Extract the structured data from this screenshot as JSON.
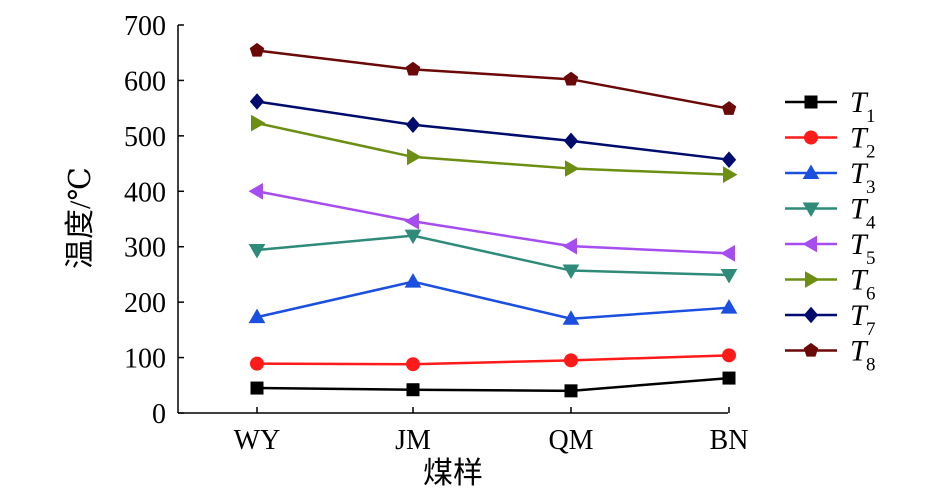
{
  "chart_data": {
    "type": "line",
    "categories": [
      "WY",
      "JM",
      "QM",
      "BN"
    ],
    "xlabel": "煤样",
    "ylabel": "温度/℃",
    "ylim": [
      0,
      700
    ],
    "yticks": [
      0,
      100,
      200,
      300,
      400,
      500,
      600,
      700
    ],
    "grid": false,
    "legend_position": "right",
    "series": [
      {
        "name": "T",
        "subscript": "1",
        "color": "#000000",
        "marker": "square",
        "values": [
          45,
          42,
          40,
          63
        ]
      },
      {
        "name": "T",
        "subscript": "2",
        "color": "#ff1a1a",
        "marker": "circle",
        "values": [
          89,
          88,
          95,
          104
        ]
      },
      {
        "name": "T",
        "subscript": "3",
        "color": "#1a4fe0",
        "marker": "triangle-up",
        "values": [
          173,
          237,
          170,
          190
        ]
      },
      {
        "name": "T",
        "subscript": "4",
        "color": "#2e8b7a",
        "marker": "triangle-down",
        "values": [
          294,
          320,
          257,
          249
        ]
      },
      {
        "name": "T",
        "subscript": "5",
        "color": "#a64df0",
        "marker": "triangle-left",
        "values": [
          400,
          346,
          301,
          288
        ]
      },
      {
        "name": "T",
        "subscript": "6",
        "color": "#6b8e13",
        "marker": "triangle-right",
        "values": [
          523,
          462,
          441,
          430
        ]
      },
      {
        "name": "T",
        "subscript": "7",
        "color": "#000b6e",
        "marker": "diamond",
        "values": [
          562,
          520,
          491,
          457
        ]
      },
      {
        "name": "T",
        "subscript": "8",
        "color": "#6b0808",
        "marker": "pentagon",
        "values": [
          654,
          620,
          602,
          549
        ]
      }
    ]
  }
}
